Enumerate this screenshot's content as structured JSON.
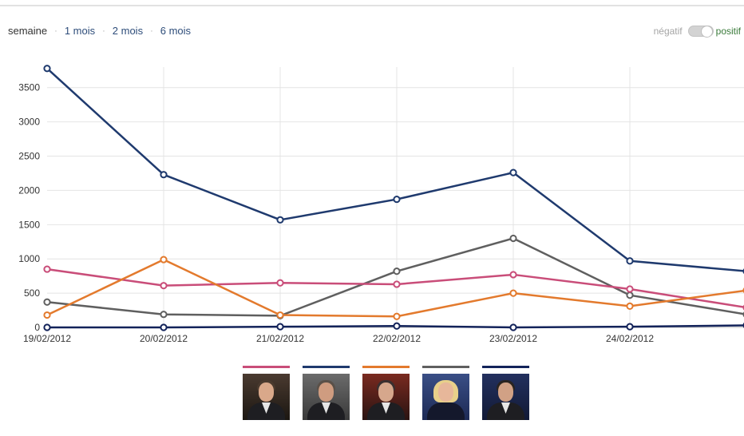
{
  "nav": {
    "options": [
      "semaine",
      "1 mois",
      "2 mois",
      "6 mois"
    ],
    "separator": "·",
    "active": "semaine"
  },
  "toggle": {
    "negative_label": "négatif",
    "positive_label": "positif",
    "state": "positif"
  },
  "legend": [
    {
      "color": "#c94d79"
    },
    {
      "color": "#1f3a6e"
    },
    {
      "color": "#e37a2d"
    },
    {
      "color": "#5f5f5f"
    },
    {
      "color": "#13235a"
    }
  ],
  "chart_data": {
    "type": "line",
    "categories": [
      "19/02/2012",
      "20/02/2012",
      "21/02/2012",
      "22/02/2012",
      "23/02/2012",
      "24/02/2012",
      ""
    ],
    "ylim": [
      0,
      3800
    ],
    "yticks": [
      0,
      500,
      1000,
      1500,
      2000,
      2500,
      3000,
      3500
    ],
    "grid": {
      "horizontal": true,
      "vertical": true
    },
    "series": [
      {
        "color": "#1f3a6e",
        "values": [
          3780,
          2230,
          1570,
          1870,
          2260,
          970,
          820
        ]
      },
      {
        "color": "#5f5f5f",
        "values": [
          370,
          190,
          170,
          820,
          1300,
          470,
          190
        ]
      },
      {
        "color": "#c94d79",
        "values": [
          850,
          610,
          650,
          630,
          770,
          560,
          290
        ]
      },
      {
        "color": "#e37a2d",
        "values": [
          180,
          990,
          180,
          160,
          500,
          310,
          540
        ]
      },
      {
        "color": "#13235a",
        "values": [
          0,
          0,
          10,
          20,
          0,
          10,
          30
        ]
      }
    ]
  }
}
